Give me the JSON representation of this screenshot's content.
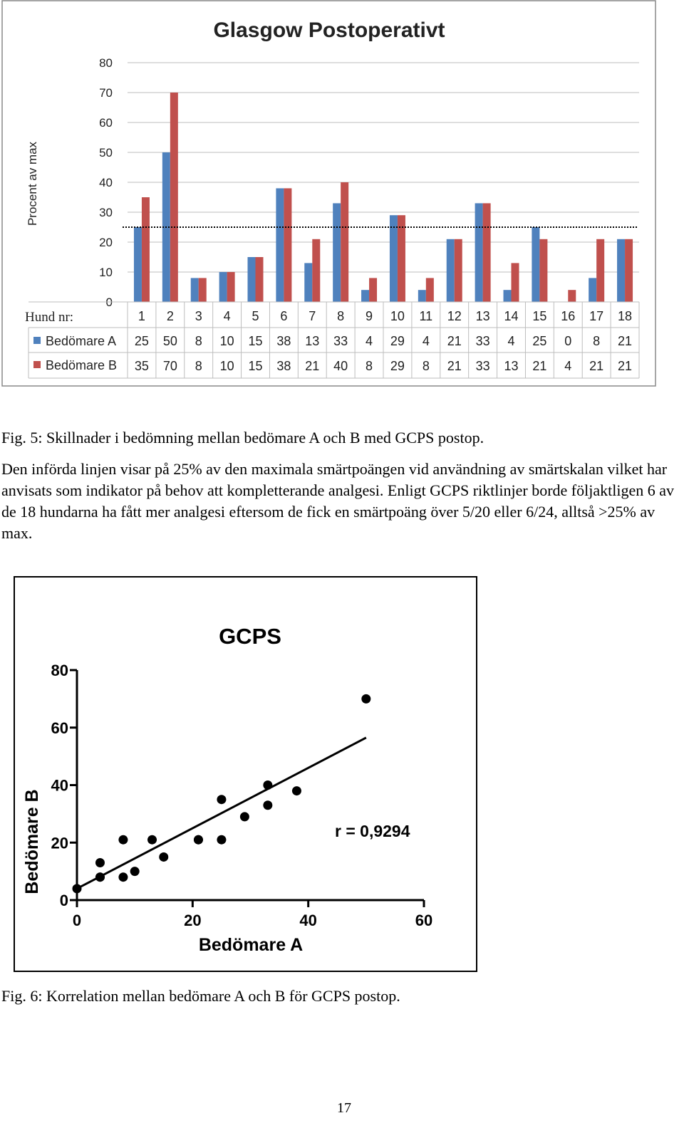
{
  "chart_data": [
    {
      "type": "bar",
      "title": "Glasgow Postoperativt",
      "ylabel": "Procent av max",
      "row_header": "Hund nr:",
      "categories": [
        "1",
        "2",
        "3",
        "4",
        "5",
        "6",
        "7",
        "8",
        "9",
        "10",
        "11",
        "12",
        "13",
        "14",
        "15",
        "16",
        "17",
        "18"
      ],
      "series": [
        {
          "name": "Bedömare A",
          "color": "#4f81bd",
          "values": [
            25,
            50,
            8,
            10,
            15,
            38,
            13,
            33,
            4,
            29,
            4,
            21,
            33,
            4,
            25,
            0,
            8,
            21
          ]
        },
        {
          "name": "Bedömare B",
          "color": "#c0504d",
          "values": [
            35,
            70,
            8,
            10,
            15,
            38,
            21,
            40,
            8,
            29,
            8,
            21,
            33,
            13,
            21,
            4,
            21,
            21
          ]
        }
      ],
      "ylim": [
        0,
        80
      ],
      "yticks": [
        "0",
        "10",
        "20",
        "30",
        "40",
        "50",
        "60",
        "70",
        "80"
      ],
      "reference_line": 25,
      "grid": true,
      "legend": "data-table"
    },
    {
      "type": "scatter",
      "title": "GCPS",
      "xlabel": "Bedömare A",
      "ylabel": "Bedömare B",
      "xlim": [
        0,
        60
      ],
      "ylim": [
        0,
        80
      ],
      "xticks": [
        "0",
        "20",
        "40",
        "60"
      ],
      "yticks": [
        "0",
        "20",
        "40",
        "60",
        "80"
      ],
      "points": [
        [
          25,
          35
        ],
        [
          50,
          70
        ],
        [
          8,
          8
        ],
        [
          10,
          10
        ],
        [
          15,
          15
        ],
        [
          38,
          38
        ],
        [
          13,
          21
        ],
        [
          33,
          40
        ],
        [
          4,
          8
        ],
        [
          29,
          29
        ],
        [
          4,
          8
        ],
        [
          21,
          21
        ],
        [
          33,
          33
        ],
        [
          4,
          13
        ],
        [
          25,
          21
        ],
        [
          0,
          4
        ],
        [
          8,
          21
        ],
        [
          21,
          21
        ]
      ],
      "fit_line": [
        [
          0,
          4
        ],
        [
          50,
          56.5
        ]
      ],
      "annotation": "r = 0,9294"
    }
  ],
  "captions": {
    "fig5": "Fig. 5: Skillnader i bedömning mellan bedömare A och B med GCPS postop.",
    "paragraph": "Den införda linjen visar på 25% av den maximala smärtpoängen vid användning av smärtskalan vilket har anvisats som indikator på behov att kompletterande analgesi. Enligt GCPS riktlinjer borde följaktligen 6 av de 18 hundarna ha fått mer analgesi eftersom de fick en smärtpoäng över 5/20 eller 6/24, alltså >25% av max.",
    "fig6": "Fig. 6: Korrelation mellan bedömare A och B för GCPS postop."
  },
  "page_number": "17"
}
